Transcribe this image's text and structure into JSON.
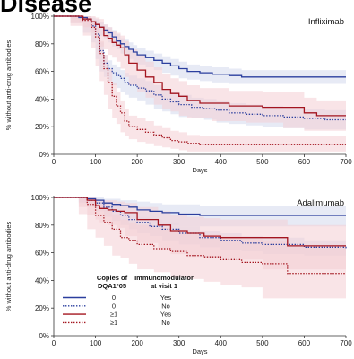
{
  "page": {
    "title": "Disease"
  },
  "colors": {
    "blue": "#2b3f9e",
    "red": "#a3151f",
    "blue_band": "#dfe3f2",
    "red_band": "#f4cdd4",
    "axis": "#333333"
  },
  "chart_data": [
    {
      "type": "line",
      "panel": "Infliximab",
      "xlabel": "Days",
      "ylabel": "% without anti-drug antibodies",
      "xlim": [
        0,
        700
      ],
      "ylim": [
        0,
        100
      ],
      "xticks": [
        0,
        100,
        200,
        300,
        400,
        500,
        600,
        700
      ],
      "yticks": [
        "0%",
        "20%",
        "40%",
        "60%",
        "80%",
        "100%"
      ],
      "grid": false,
      "series": [
        {
          "copies": "0",
          "immunomodulator": "Yes",
          "color": "blue",
          "style": "solid",
          "x": [
            0,
            40,
            60,
            80,
            90,
            100,
            110,
            120,
            130,
            140,
            150,
            160,
            170,
            180,
            190,
            200,
            220,
            240,
            260,
            280,
            300,
            320,
            350,
            380,
            420,
            450,
            500,
            540,
            600,
            700
          ],
          "y": [
            100,
            100,
            99,
            98,
            96,
            94,
            92,
            90,
            88,
            85,
            82,
            80,
            78,
            76,
            74,
            72,
            70,
            68,
            66,
            64,
            62,
            60,
            59,
            58,
            57,
            56,
            56,
            56,
            56,
            56
          ],
          "ci_low": [
            100,
            100,
            98,
            96,
            93,
            90,
            88,
            86,
            84,
            81,
            78,
            76,
            73,
            71,
            69,
            67,
            65,
            63,
            61,
            59,
            57,
            55,
            54,
            53,
            52,
            51,
            51,
            51,
            51,
            51
          ],
          "ci_high": [
            100,
            100,
            100,
            100,
            99,
            98,
            96,
            94,
            92,
            90,
            87,
            84,
            83,
            81,
            79,
            77,
            75,
            73,
            71,
            69,
            67,
            65,
            64,
            63,
            62,
            61,
            61,
            61,
            61,
            61
          ]
        },
        {
          "copies": "0",
          "immunomodulator": "No",
          "color": "blue",
          "style": "dotted",
          "x": [
            0,
            40,
            70,
            90,
            100,
            110,
            120,
            130,
            140,
            150,
            160,
            170,
            180,
            200,
            220,
            240,
            260,
            280,
            300,
            330,
            360,
            390,
            420,
            460,
            500,
            550,
            600,
            650,
            700
          ],
          "y": [
            100,
            100,
            98,
            93,
            87,
            75,
            66,
            62,
            59,
            57,
            55,
            52,
            50,
            48,
            46,
            43,
            40,
            38,
            36,
            34,
            33,
            32,
            30,
            29,
            28,
            27,
            26,
            25,
            25
          ],
          "ci_low": [
            100,
            100,
            95,
            88,
            81,
            69,
            60,
            56,
            53,
            50,
            48,
            45,
            43,
            41,
            39,
            36,
            33,
            31,
            29,
            27,
            26,
            25,
            23,
            22,
            21,
            20,
            19,
            18,
            18
          ],
          "ci_high": [
            100,
            100,
            100,
            97,
            92,
            81,
            72,
            68,
            65,
            63,
            61,
            59,
            57,
            55,
            53,
            50,
            47,
            45,
            43,
            41,
            40,
            39,
            37,
            36,
            35,
            34,
            33,
            32,
            32
          ]
        },
        {
          "copies": "≥1",
          "immunomodulator": "Yes",
          "color": "red",
          "style": "solid",
          "x": [
            0,
            40,
            70,
            90,
            100,
            110,
            120,
            130,
            140,
            150,
            160,
            170,
            180,
            200,
            220,
            240,
            260,
            280,
            300,
            320,
            350,
            380,
            420,
            460,
            500,
            550,
            600,
            630,
            700
          ],
          "y": [
            100,
            100,
            98,
            96,
            94,
            92,
            86,
            84,
            81,
            79,
            77,
            72,
            66,
            61,
            56,
            52,
            47,
            44,
            42,
            39,
            37,
            37,
            35,
            35,
            34,
            34,
            30,
            28,
            28
          ],
          "ci_low": [
            100,
            100,
            95,
            92,
            88,
            85,
            78,
            76,
            72,
            70,
            67,
            62,
            56,
            50,
            45,
            41,
            36,
            33,
            31,
            28,
            26,
            26,
            24,
            24,
            23,
            23,
            19,
            17,
            17
          ],
          "ci_high": [
            100,
            100,
            100,
            100,
            99,
            98,
            94,
            92,
            89,
            88,
            86,
            82,
            76,
            72,
            67,
            63,
            58,
            55,
            53,
            50,
            48,
            48,
            46,
            46,
            45,
            45,
            41,
            39,
            39
          ]
        },
        {
          "copies": "≥1",
          "immunomodulator": "No",
          "color": "red",
          "style": "dotted",
          "x": [
            0,
            40,
            70,
            90,
            100,
            110,
            120,
            130,
            140,
            150,
            160,
            170,
            180,
            200,
            220,
            240,
            260,
            280,
            300,
            320,
            350,
            400,
            450,
            500,
            600,
            700
          ],
          "y": [
            100,
            100,
            97,
            92,
            85,
            73,
            62,
            52,
            42,
            35,
            30,
            24,
            20,
            18,
            16,
            14,
            12,
            10,
            9,
            8,
            7,
            7,
            7,
            7,
            7,
            7
          ],
          "ci_low": [
            100,
            100,
            93,
            86,
            77,
            64,
            53,
            43,
            33,
            26,
            22,
            16,
            13,
            11,
            9,
            8,
            6,
            5,
            4,
            3,
            2,
            2,
            2,
            2,
            2,
            2
          ],
          "ci_high": [
            100,
            100,
            100,
            97,
            92,
            82,
            72,
            62,
            52,
            45,
            39,
            33,
            28,
            26,
            24,
            21,
            19,
            17,
            16,
            14,
            13,
            13,
            13,
            13,
            13,
            13
          ]
        }
      ]
    },
    {
      "type": "line",
      "panel": "Adalimumab",
      "xlabel": "Days",
      "ylabel": "% without anti-drug antibodies",
      "xlim": [
        0,
        700
      ],
      "ylim": [
        0,
        100
      ],
      "xticks": [
        0,
        100,
        200,
        300,
        400,
        500,
        600,
        700
      ],
      "yticks": [
        "0%",
        "20%",
        "40%",
        "60%",
        "80%",
        "100%"
      ],
      "grid": false,
      "legend": {
        "headers": [
          "Copies of DQA1*05",
          "Immunomodulator at visit 1"
        ],
        "rows": [
          {
            "copies": "0",
            "immunomodulator": "Yes",
            "color": "blue",
            "style": "solid"
          },
          {
            "copies": "0",
            "immunomodulator": "No",
            "color": "blue",
            "style": "dotted"
          },
          {
            "copies": "≥1",
            "immunomodulator": "Yes",
            "color": "red",
            "style": "solid"
          },
          {
            "copies": "≥1",
            "immunomodulator": "No",
            "color": "red",
            "style": "dotted"
          }
        ]
      },
      "series": [
        {
          "copies": "0",
          "immunomodulator": "Yes",
          "color": "blue",
          "style": "solid",
          "x": [
            0,
            60,
            80,
            100,
            120,
            140,
            160,
            180,
            200,
            230,
            260,
            300,
            350,
            400,
            450,
            500,
            600,
            700
          ],
          "y": [
            100,
            100,
            99,
            98,
            96,
            95,
            94,
            93,
            91,
            90,
            89,
            88,
            87,
            87,
            87,
            87,
            87,
            87
          ],
          "ci_low": [
            100,
            100,
            97,
            95,
            92,
            90,
            89,
            87,
            85,
            83,
            82,
            80,
            79,
            79,
            79,
            79,
            79,
            79
          ],
          "ci_high": [
            100,
            100,
            100,
            100,
            99,
            99,
            98,
            98,
            97,
            96,
            95,
            95,
            94,
            94,
            94,
            94,
            94,
            94
          ]
        },
        {
          "copies": "0",
          "immunomodulator": "No",
          "color": "blue",
          "style": "dotted",
          "x": [
            0,
            60,
            80,
            100,
            120,
            140,
            160,
            180,
            200,
            230,
            260,
            300,
            350,
            400,
            450,
            500,
            600,
            700
          ],
          "y": [
            100,
            100,
            98,
            96,
            93,
            90,
            87,
            84,
            82,
            79,
            77,
            74,
            71,
            69,
            67,
            66,
            64,
            63
          ],
          "ci_low": [
            100,
            100,
            96,
            93,
            90,
            86,
            83,
            80,
            77,
            74,
            72,
            69,
            66,
            64,
            62,
            61,
            59,
            58
          ],
          "ci_high": [
            100,
            100,
            100,
            99,
            96,
            94,
            91,
            88,
            86,
            84,
            82,
            79,
            76,
            74,
            72,
            71,
            69,
            68
          ]
        },
        {
          "copies": "≥1",
          "immunomodulator": "Yes",
          "color": "red",
          "style": "solid",
          "x": [
            0,
            60,
            80,
            100,
            110,
            130,
            150,
            170,
            200,
            250,
            280,
            320,
            360,
            400,
            450,
            500,
            560,
            600,
            700
          ],
          "y": [
            100,
            100,
            98,
            94,
            92,
            91,
            90,
            89,
            84,
            80,
            76,
            74,
            72,
            71,
            71,
            71,
            65,
            65,
            65
          ],
          "ci_low": [
            100,
            100,
            93,
            87,
            84,
            82,
            80,
            78,
            72,
            67,
            62,
            59,
            57,
            56,
            56,
            55,
            48,
            48,
            48
          ],
          "ci_high": [
            100,
            100,
            100,
            99,
            98,
            98,
            97,
            96,
            93,
            90,
            87,
            86,
            85,
            84,
            84,
            84,
            80,
            80,
            80
          ]
        },
        {
          "copies": "≥1",
          "immunomodulator": "No",
          "color": "red",
          "style": "dotted",
          "x": [
            0,
            60,
            80,
            100,
            120,
            140,
            160,
            180,
            200,
            240,
            280,
            320,
            360,
            400,
            450,
            500,
            560,
            600,
            650,
            700
          ],
          "y": [
            100,
            100,
            95,
            87,
            82,
            77,
            71,
            69,
            66,
            63,
            61,
            58,
            57,
            55,
            53,
            52,
            45,
            45,
            45,
            45
          ],
          "ci_low": [
            100,
            100,
            88,
            77,
            71,
            65,
            58,
            56,
            52,
            48,
            46,
            42,
            41,
            39,
            37,
            35,
            27,
            27,
            27,
            27
          ],
          "ci_high": [
            100,
            100,
            99,
            95,
            91,
            88,
            84,
            82,
            80,
            78,
            76,
            74,
            73,
            72,
            70,
            69,
            64,
            64,
            64,
            64
          ]
        }
      ]
    }
  ]
}
